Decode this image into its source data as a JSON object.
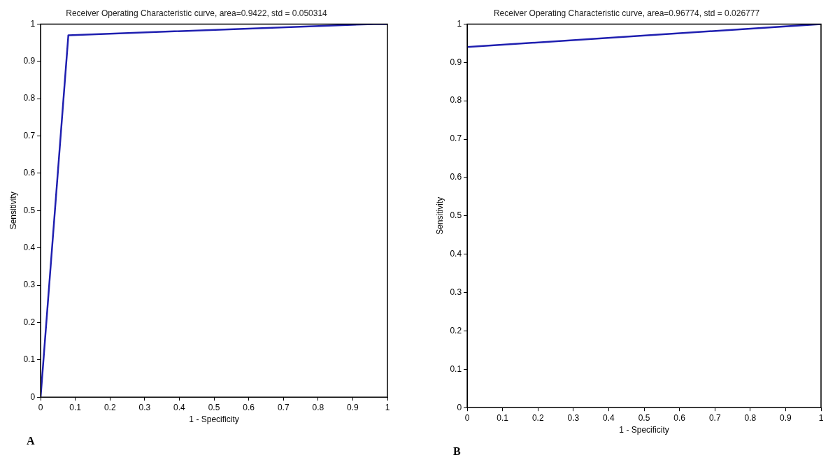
{
  "chart_data": [
    {
      "type": "line",
      "title": "Receiver Operating Characteristic curve, area=0.9422, std = 0.050314",
      "xlabel": "1 - Specificity",
      "ylabel": "Sensitivity",
      "annotations": [
        "A"
      ],
      "marker": "none",
      "series": [
        {
          "color": "#1f1fb0",
          "x": [
            0,
            0.08,
            0.96,
            1
          ],
          "values": [
            0,
            0.97,
            1,
            1
          ]
        }
      ],
      "xlim": [
        0,
        1
      ],
      "ylim": [
        0,
        1
      ],
      "xticks": [
        0,
        0.1,
        0.2,
        0.3,
        0.4,
        0.5,
        0.6,
        0.7,
        0.8,
        0.9,
        1
      ],
      "yticks": [
        0,
        0.1,
        0.2,
        0.3,
        0.4,
        0.5,
        0.6,
        0.7,
        0.8,
        0.9,
        1
      ]
    },
    {
      "type": "line",
      "title": "Receiver Operating Characteristic curve, area=0.96774, std = 0.026777",
      "xlabel": "1 - Specificity",
      "ylabel": "Sensitivity",
      "annotations": [
        "B"
      ],
      "marker": "none",
      "series": [
        {
          "color": "#1f1fb0",
          "x": [
            0,
            1
          ],
          "values": [
            0.94,
            1
          ]
        }
      ],
      "xlim": [
        0,
        1
      ],
      "ylim": [
        0,
        1
      ],
      "xticks": [
        0,
        0.1,
        0.2,
        0.3,
        0.4,
        0.5,
        0.6,
        0.7,
        0.8,
        0.9,
        1
      ],
      "yticks": [
        0,
        0.1,
        0.2,
        0.3,
        0.4,
        0.5,
        0.6,
        0.7,
        0.8,
        0.9,
        1
      ]
    }
  ]
}
